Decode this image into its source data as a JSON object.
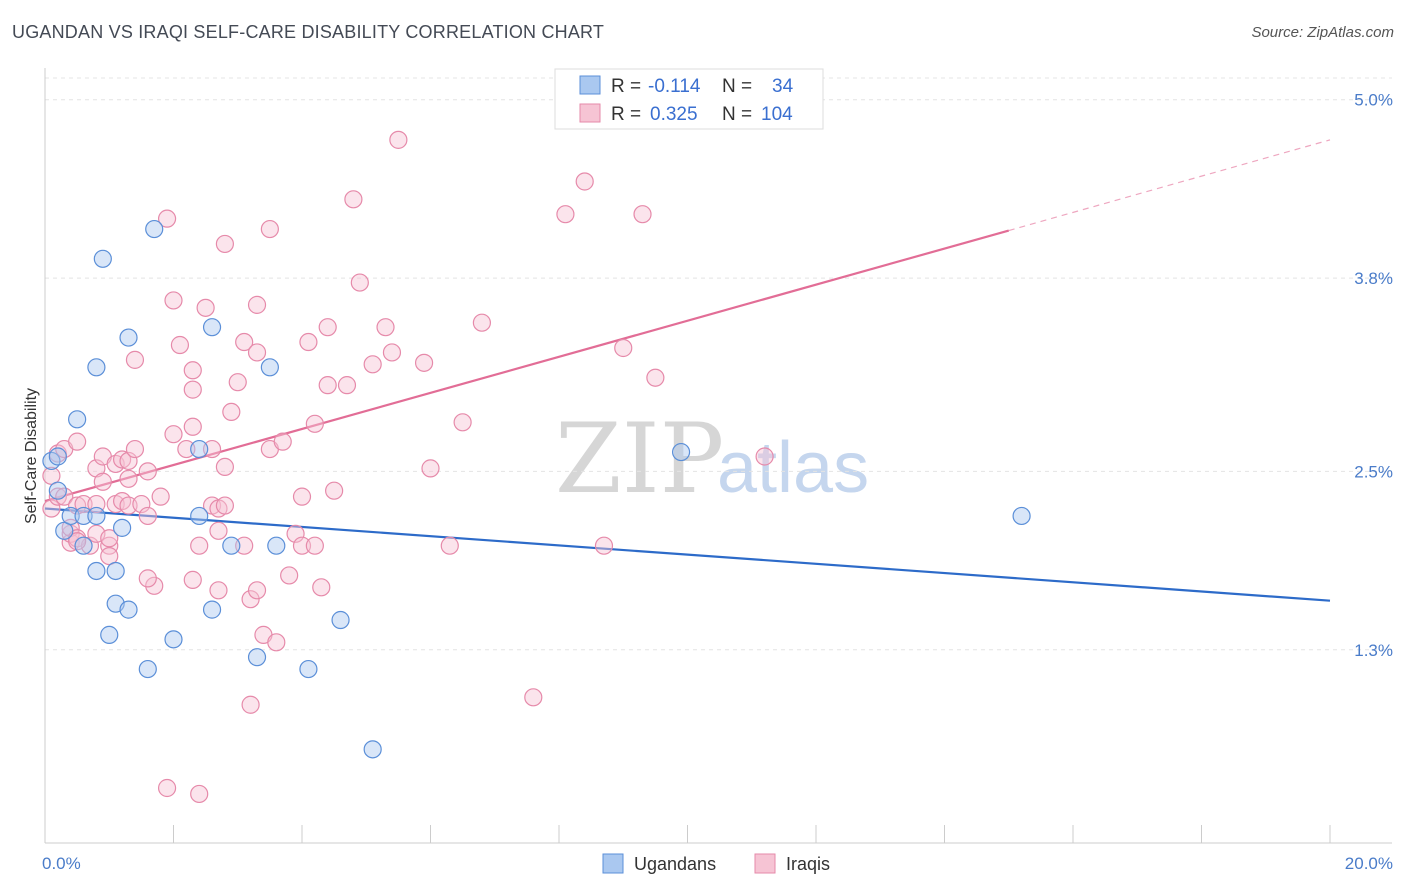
{
  "chart_data": {
    "type": "scatter",
    "title": "UGANDAN VS IRAQI SELF-CARE DISABILITY CORRELATION CHART",
    "source": "Source: ZipAtlas.com",
    "ylabel": "Self-Care Disability",
    "xlabel": "",
    "xlim": [
      0,
      20
    ],
    "ylim": [
      0,
      5.2
    ],
    "x_tick_labels": [
      "0.0%",
      "20.0%"
    ],
    "y_ticks": [
      {
        "value": 1.3,
        "label": "1.3%"
      },
      {
        "value": 2.5,
        "label": "2.5%"
      },
      {
        "value": 3.8,
        "label": "3.8%"
      },
      {
        "value": 5.0,
        "label": "5.0%"
      }
    ],
    "legend": {
      "rows": [
        {
          "r_label": "R =",
          "r_value": "-0.114",
          "n_label": "N =",
          "n_value": "34"
        },
        {
          "r_label": "R =",
          "r_value": "0.325",
          "n_label": "N =",
          "n_value": "104"
        }
      ]
    },
    "series": [
      {
        "name": "Ugandans",
        "color": "#5b8fd8",
        "fill": "#aac8f0",
        "trend": {
          "x0": 0,
          "y0": 2.25,
          "x1": 20,
          "y1": 1.63,
          "color": "#2d6bc9"
        },
        "points": [
          [
            0.1,
            2.57
          ],
          [
            0.2,
            2.6
          ],
          [
            0.2,
            2.37
          ],
          [
            0.3,
            2.1
          ],
          [
            0.4,
            2.2
          ],
          [
            0.5,
            2.85
          ],
          [
            0.6,
            2.2
          ],
          [
            0.6,
            2.0
          ],
          [
            0.8,
            2.2
          ],
          [
            0.8,
            3.2
          ],
          [
            0.8,
            1.83
          ],
          [
            0.9,
            3.93
          ],
          [
            1.0,
            1.4
          ],
          [
            1.1,
            1.83
          ],
          [
            1.1,
            1.61
          ],
          [
            1.2,
            2.12
          ],
          [
            1.3,
            3.4
          ],
          [
            1.3,
            1.57
          ],
          [
            1.6,
            1.17
          ],
          [
            1.7,
            4.13
          ],
          [
            2.0,
            1.37
          ],
          [
            2.4,
            2.2
          ],
          [
            2.4,
            2.65
          ],
          [
            2.6,
            1.57
          ],
          [
            2.6,
            3.47
          ],
          [
            2.9,
            2.0
          ],
          [
            3.3,
            1.25
          ],
          [
            3.5,
            3.2
          ],
          [
            3.6,
            2.0
          ],
          [
            4.1,
            1.17
          ],
          [
            4.6,
            1.5
          ],
          [
            5.1,
            0.63
          ],
          [
            9.9,
            2.63
          ],
          [
            15.2,
            2.2
          ]
        ]
      },
      {
        "name": "Iraqis",
        "color": "#e68aaa",
        "fill": "#f6c4d4",
        "trend": {
          "x0": 0,
          "y0": 2.3,
          "x1": 15,
          "y1": 4.12,
          "dash_to_x": 20,
          "dash_to_y": 4.73,
          "color": "#e26d96"
        },
        "points": [
          [
            0.1,
            2.25
          ],
          [
            0.1,
            2.47
          ],
          [
            0.2,
            2.62
          ],
          [
            0.2,
            2.33
          ],
          [
            0.3,
            2.65
          ],
          [
            0.3,
            2.33
          ],
          [
            0.4,
            2.02
          ],
          [
            0.4,
            2.08
          ],
          [
            0.4,
            2.12
          ],
          [
            0.5,
            2.7
          ],
          [
            0.5,
            2.05
          ],
          [
            0.5,
            2.27
          ],
          [
            0.6,
            2.28
          ],
          [
            0.7,
            2.0
          ],
          [
            0.8,
            2.52
          ],
          [
            0.8,
            2.28
          ],
          [
            0.8,
            2.08
          ],
          [
            0.9,
            2.6
          ],
          [
            0.9,
            2.43
          ],
          [
            1.0,
            2.0
          ],
          [
            1.0,
            2.05
          ],
          [
            1.0,
            1.93
          ],
          [
            1.1,
            2.28
          ],
          [
            1.1,
            2.55
          ],
          [
            1.2,
            2.58
          ],
          [
            1.2,
            2.3
          ],
          [
            1.3,
            2.57
          ],
          [
            1.3,
            2.27
          ],
          [
            1.3,
            2.45
          ],
          [
            1.4,
            3.25
          ],
          [
            1.4,
            2.65
          ],
          [
            1.5,
            2.28
          ],
          [
            1.6,
            2.5
          ],
          [
            1.6,
            2.2
          ],
          [
            1.7,
            1.73
          ],
          [
            1.8,
            2.33
          ],
          [
            1.9,
            4.2
          ],
          [
            1.9,
            0.37
          ],
          [
            2.0,
            3.65
          ],
          [
            2.0,
            2.75
          ],
          [
            2.1,
            3.35
          ],
          [
            2.2,
            2.65
          ],
          [
            2.3,
            2.8
          ],
          [
            2.3,
            3.05
          ],
          [
            2.3,
            1.77
          ],
          [
            2.3,
            3.18
          ],
          [
            2.4,
            2.0
          ],
          [
            2.4,
            0.33
          ],
          [
            2.5,
            3.6
          ],
          [
            2.6,
            2.27
          ],
          [
            2.6,
            2.65
          ],
          [
            2.7,
            1.7
          ],
          [
            2.7,
            2.1
          ],
          [
            2.7,
            2.25
          ],
          [
            2.8,
            2.53
          ],
          [
            2.8,
            2.27
          ],
          [
            2.8,
            4.03
          ],
          [
            2.9,
            2.9
          ],
          [
            3.0,
            3.1
          ],
          [
            3.1,
            3.37
          ],
          [
            3.1,
            2.0
          ],
          [
            3.2,
            1.64
          ],
          [
            3.2,
            0.93
          ],
          [
            3.3,
            3.3
          ],
          [
            3.3,
            1.7
          ],
          [
            3.3,
            3.62
          ],
          [
            3.4,
            1.4
          ],
          [
            3.5,
            2.65
          ],
          [
            3.5,
            4.13
          ],
          [
            3.6,
            1.35
          ],
          [
            3.7,
            2.7
          ],
          [
            3.8,
            1.8
          ],
          [
            3.9,
            2.08
          ],
          [
            4.0,
            2.33
          ],
          [
            4.0,
            2.0
          ],
          [
            4.1,
            3.37
          ],
          [
            4.2,
            2.82
          ],
          [
            4.2,
            2.0
          ],
          [
            4.3,
            1.72
          ],
          [
            4.4,
            3.47
          ],
          [
            4.4,
            3.08
          ],
          [
            4.5,
            2.37
          ],
          [
            4.7,
            3.08
          ],
          [
            4.8,
            4.33
          ],
          [
            4.9,
            3.77
          ],
          [
            5.1,
            3.22
          ],
          [
            5.3,
            3.47
          ],
          [
            5.4,
            3.3
          ],
          [
            5.5,
            4.73
          ],
          [
            5.9,
            3.23
          ],
          [
            6.0,
            2.52
          ],
          [
            6.3,
            2.0
          ],
          [
            6.5,
            2.83
          ],
          [
            6.8,
            3.5
          ],
          [
            7.6,
            0.98
          ],
          [
            8.1,
            4.23
          ],
          [
            8.4,
            4.45
          ],
          [
            8.7,
            2.0
          ],
          [
            9.0,
            3.33
          ],
          [
            9.3,
            4.23
          ],
          [
            9.5,
            3.13
          ],
          [
            11.2,
            2.6
          ],
          [
            0.5,
            2.03
          ],
          [
            1.6,
            1.78
          ]
        ]
      }
    ]
  }
}
